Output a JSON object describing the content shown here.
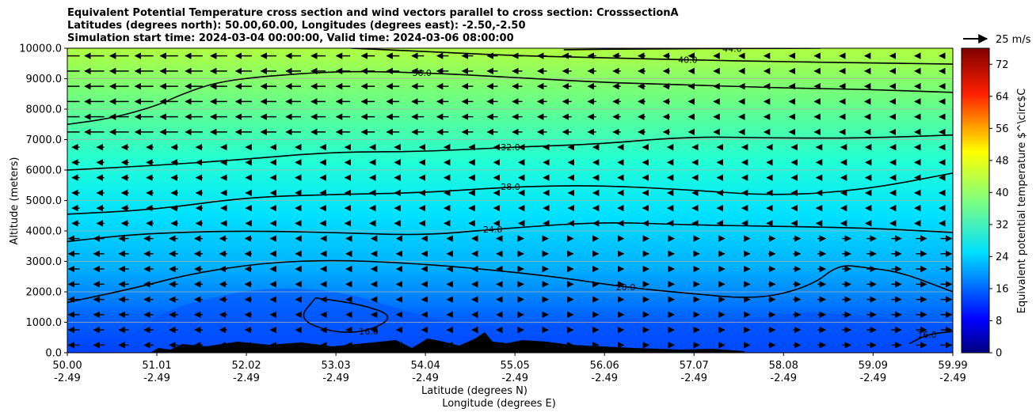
{
  "chart_data": {
    "type": "heatmap",
    "title_lines": [
      "Equivalent Potential Temperature cross section and wind vectors parallel to cross section: CrosssectionA",
      "Latitudes (degrees north): 50.00,60.00, Longitudes (degrees east): -2.50,-2.50",
      "Simulation start time: 2024-03-04 00:00:00, Valid time: 2024-03-06 08:00:00"
    ],
    "ylabel": "Altitude (meters)",
    "xlabel_lines": [
      "Latitude (degrees N)",
      "Longitude (degrees E)"
    ],
    "x_ticks": [
      {
        "lat": "50.00",
        "lon": "-2.49"
      },
      {
        "lat": "51.01",
        "lon": "-2.49"
      },
      {
        "lat": "52.02",
        "lon": "-2.49"
      },
      {
        "lat": "53.03",
        "lon": "-2.49"
      },
      {
        "lat": "54.04",
        "lon": "-2.49"
      },
      {
        "lat": "55.05",
        "lon": "-2.49"
      },
      {
        "lat": "56.06",
        "lon": "-2.49"
      },
      {
        "lat": "57.07",
        "lon": "-2.49"
      },
      {
        "lat": "58.08",
        "lon": "-2.49"
      },
      {
        "lat": "59.09",
        "lon": "-2.49"
      },
      {
        "lat": "59.99",
        "lon": "-2.49"
      }
    ],
    "y_ticks": [
      "0.0",
      "1000.0",
      "2000.0",
      "3000.0",
      "4000.0",
      "5000.0",
      "6000.0",
      "7000.0",
      "8000.0",
      "9000.0",
      "10000.0"
    ],
    "xlim": [
      50.0,
      59.99
    ],
    "ylim": [
      0,
      10000
    ],
    "grid": "horizontal",
    "colorbar": {
      "label": "Equivalent potential temperature $^\\circ$C",
      "ticks": [
        "0",
        "8",
        "16",
        "24",
        "32",
        "40",
        "48",
        "56",
        "64",
        "72"
      ],
      "range": [
        0,
        76
      ]
    },
    "quiver_key": "25 m/s",
    "contours": [
      {
        "label": "44.0",
        "points": [
          [
            55.6,
            9950
          ],
          [
            56.5,
            9980
          ],
          [
            57.5,
            9990
          ],
          [
            58.5,
            10000
          ]
        ]
      },
      {
        "label": "40.0",
        "points": [
          [
            53.2,
            10000
          ],
          [
            54.0,
            9900
          ],
          [
            55.0,
            9760
          ],
          [
            56.0,
            9690
          ],
          [
            57.0,
            9620
          ],
          [
            58.0,
            9560
          ],
          [
            59.0,
            9520
          ],
          [
            59.99,
            9480
          ]
        ]
      },
      {
        "label": "36.0",
        "points": [
          [
            50.0,
            7500
          ],
          [
            50.5,
            7700
          ],
          [
            51.0,
            8100
          ],
          [
            51.3,
            8500
          ],
          [
            51.7,
            8900
          ],
          [
            52.3,
            9100
          ],
          [
            53.1,
            9250
          ],
          [
            54.0,
            9200
          ],
          [
            55.0,
            9050
          ],
          [
            56.0,
            8880
          ],
          [
            57.0,
            8800
          ],
          [
            58.0,
            8700
          ],
          [
            59.0,
            8650
          ],
          [
            59.99,
            8550
          ]
        ]
      },
      {
        "label": "32.0",
        "points": [
          [
            50.0,
            6000
          ],
          [
            51.0,
            6150
          ],
          [
            52.0,
            6350
          ],
          [
            53.0,
            6600
          ],
          [
            54.0,
            6600
          ],
          [
            55.0,
            6750
          ],
          [
            56.0,
            6850
          ],
          [
            57.0,
            7100
          ],
          [
            58.0,
            7050
          ],
          [
            59.0,
            7050
          ],
          [
            59.99,
            7150
          ]
        ]
      },
      {
        "label": "28.0",
        "points": [
          [
            50.0,
            4550
          ],
          [
            51.0,
            4700
          ],
          [
            52.0,
            5100
          ],
          [
            53.0,
            5200
          ],
          [
            54.0,
            5250
          ],
          [
            55.0,
            5450
          ],
          [
            56.0,
            5500
          ],
          [
            57.0,
            5350
          ],
          [
            58.0,
            5150
          ],
          [
            59.0,
            5350
          ],
          [
            59.99,
            5900
          ]
        ]
      },
      {
        "label": "24.0",
        "points": [
          [
            50.0,
            3650
          ],
          [
            50.6,
            3850
          ],
          [
            51.2,
            3950
          ],
          [
            52.0,
            4000
          ],
          [
            53.0,
            3950
          ],
          [
            54.0,
            3850
          ],
          [
            54.8,
            4050
          ],
          [
            56.0,
            4300
          ],
          [
            57.0,
            4200
          ],
          [
            58.0,
            4150
          ],
          [
            59.0,
            4100
          ],
          [
            59.99,
            3950
          ]
        ]
      },
      {
        "label": "20.0",
        "points": [
          [
            50.0,
            1650
          ],
          [
            50.8,
            2150
          ],
          [
            51.4,
            2600
          ],
          [
            52.2,
            2950
          ],
          [
            53.0,
            3050
          ],
          [
            53.8,
            2950
          ],
          [
            54.5,
            2800
          ],
          [
            55.5,
            2500
          ],
          [
            56.3,
            2150
          ],
          [
            57.0,
            1950
          ],
          [
            57.8,
            1750
          ],
          [
            58.4,
            2200
          ],
          [
            58.7,
            2900
          ],
          [
            59.0,
            2800
          ],
          [
            59.4,
            2650
          ],
          [
            59.99,
            2000
          ]
        ]
      },
      {
        "label": "16.0",
        "points": [
          [
            52.8,
            1800
          ],
          [
            53.3,
            1600
          ],
          [
            53.7,
            1200
          ],
          [
            53.4,
            700
          ],
          [
            53.0,
            650
          ],
          [
            52.6,
            1100
          ],
          [
            52.8,
            1800
          ]
        ]
      },
      {
        "label": "16.0",
        "points": [
          [
            59.5,
            300
          ],
          [
            59.7,
            600
          ],
          [
            59.99,
            700
          ]
        ]
      }
    ]
  }
}
